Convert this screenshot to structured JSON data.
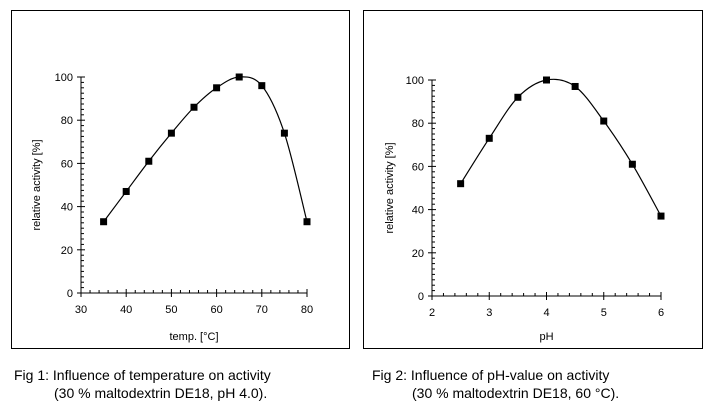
{
  "chart_data": [
    {
      "type": "line",
      "title": "",
      "xlabel": "temp. [°C]",
      "ylabel": "relative activity [%]",
      "xlim": [
        30,
        80
      ],
      "ylim": [
        0,
        100
      ],
      "xticks": [
        30,
        40,
        50,
        60,
        70,
        80
      ],
      "yticks": [
        0,
        20,
        40,
        60,
        80,
        100
      ],
      "grid": false,
      "series": [
        {
          "name": "activity",
          "x": [
            35,
            40,
            45,
            50,
            55,
            60,
            65,
            70,
            75,
            80
          ],
          "y": [
            33,
            47,
            61,
            74,
            86,
            95,
            100,
            96,
            74,
            33
          ]
        }
      ],
      "caption_line1": "Fig 1: Influence of temperature on activity",
      "caption_line2": "(30 % maltodextrin DE18, pH 4.0)."
    },
    {
      "type": "line",
      "title": "",
      "xlabel": "pH",
      "ylabel": "relative activity [%]",
      "xlim": [
        2,
        6
      ],
      "ylim": [
        0,
        100
      ],
      "xticks": [
        2,
        3,
        4,
        5,
        6
      ],
      "yticks": [
        0,
        20,
        40,
        60,
        80,
        100
      ],
      "grid": false,
      "series": [
        {
          "name": "activity",
          "x": [
            2.5,
            3,
            3.5,
            4,
            4.5,
            5,
            5.5,
            6
          ],
          "y": [
            52,
            73,
            92,
            100,
            97,
            81,
            61,
            37
          ]
        }
      ],
      "caption_line1": "Fig 2: Influence of pH-value on activity",
      "caption_line2": "(30 % maltodextrin DE18, 60 °C)."
    }
  ]
}
